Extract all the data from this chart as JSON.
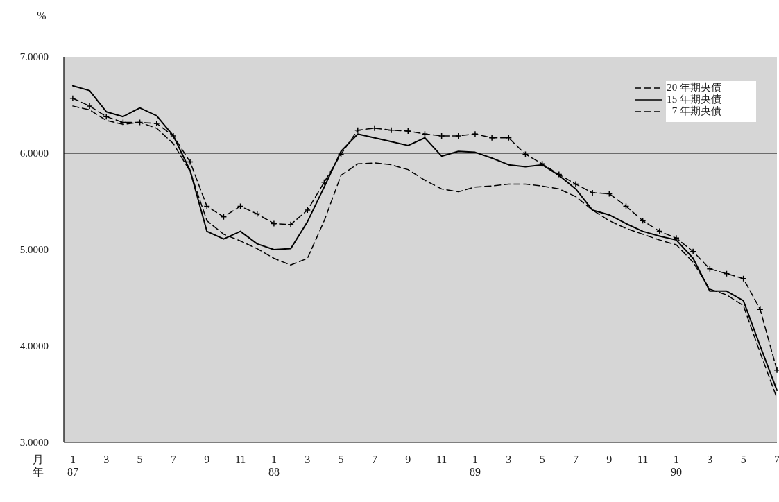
{
  "chart_data": {
    "type": "line",
    "ylabel": "%",
    "xlabel": "月年",
    "x": [
      "1987-01",
      "1987-02",
      "1987-03",
      "1987-04",
      "1987-05",
      "1987-06",
      "1987-07",
      "1987-08",
      "1987-09",
      "1987-10",
      "1987-11",
      "1987-12",
      "1988-01",
      "1988-02",
      "1988-03",
      "1988-04",
      "1988-05",
      "1988-06",
      "1988-07",
      "1988-08",
      "1988-09",
      "1988-10",
      "1988-11",
      "1988-12",
      "1989-01",
      "1989-02",
      "1989-03",
      "1989-04",
      "1989-05",
      "1989-06",
      "1989-07",
      "1989-08",
      "1989-09",
      "1989-10",
      "1989-11",
      "1989-12",
      "1990-01",
      "1990-02",
      "1990-03",
      "1990-04",
      "1990-05",
      "1990-06",
      "1990-07"
    ],
    "series": [
      {
        "name": "20 年期央債",
        "color": "#000000",
        "line_style": "dashed",
        "marker": "cross",
        "values": [
          6.57,
          6.49,
          6.38,
          6.32,
          6.32,
          6.31,
          6.18,
          5.91,
          5.45,
          5.34,
          5.45,
          5.37,
          5.27,
          5.26,
          5.41,
          5.7,
          5.99,
          6.24,
          6.26,
          6.24,
          6.23,
          6.2,
          6.18,
          6.18,
          6.2,
          6.16,
          6.16,
          5.99,
          5.89,
          5.78,
          5.68,
          5.59,
          5.58,
          5.45,
          5.3,
          5.19,
          5.12,
          4.98,
          4.8,
          4.75,
          4.7,
          4.38,
          3.75
        ]
      },
      {
        "name": "15 年期央債",
        "color": "#000000",
        "line_style": "solid",
        "marker": "none",
        "values": [
          6.7,
          6.65,
          6.43,
          6.38,
          6.47,
          6.39,
          6.18,
          5.82,
          5.19,
          5.11,
          5.19,
          5.06,
          5.0,
          5.01,
          5.29,
          5.65,
          6.02,
          6.2,
          6.16,
          6.12,
          6.08,
          6.16,
          5.97,
          6.02,
          6.01,
          5.95,
          5.88,
          5.86,
          5.88,
          5.77,
          5.63,
          5.41,
          5.36,
          5.27,
          5.19,
          5.14,
          5.1,
          4.91,
          4.57,
          4.57,
          4.47,
          4.0,
          3.54
        ]
      },
      {
        "name": "7 年期央債",
        "color": "#000000",
        "line_style": "dashed",
        "marker": "none",
        "values": [
          6.49,
          6.45,
          6.34,
          6.3,
          6.32,
          6.26,
          6.1,
          5.81,
          5.3,
          5.16,
          5.09,
          5.01,
          4.91,
          4.84,
          4.91,
          5.3,
          5.77,
          5.89,
          5.9,
          5.88,
          5.83,
          5.72,
          5.63,
          5.6,
          5.65,
          5.66,
          5.68,
          5.68,
          5.66,
          5.63,
          5.55,
          5.41,
          5.3,
          5.22,
          5.16,
          5.1,
          5.05,
          4.87,
          4.59,
          4.53,
          4.42,
          3.93,
          3.46
        ]
      }
    ],
    "xlim": [
      "1986-12-15",
      "1990-07"
    ],
    "xticks": [
      {
        "value": "1987-01",
        "label": "1\n87"
      },
      {
        "value": "1987-03",
        "label": "3"
      },
      {
        "value": "1987-05",
        "label": "5"
      },
      {
        "value": "1987-07",
        "label": "7"
      },
      {
        "value": "1987-09",
        "label": "9"
      },
      {
        "value": "1987-11",
        "label": "11"
      },
      {
        "value": "1988-01",
        "label": "1\n88"
      },
      {
        "value": "1988-03",
        "label": "3"
      },
      {
        "value": "1988-05",
        "label": "5"
      },
      {
        "value": "1988-07",
        "label": "7"
      },
      {
        "value": "1988-09",
        "label": "9"
      },
      {
        "value": "1988-11",
        "label": "11"
      },
      {
        "value": "1989-01",
        "label": "1\n89"
      },
      {
        "value": "1989-03",
        "label": "3"
      },
      {
        "value": "1989-05",
        "label": "5"
      },
      {
        "value": "1989-07",
        "label": "7"
      },
      {
        "value": "1989-09",
        "label": "9"
      },
      {
        "value": "1989-11",
        "label": "11"
      },
      {
        "value": "1990-01",
        "label": "1\n90"
      },
      {
        "value": "1990-03",
        "label": "3"
      },
      {
        "value": "1990-05",
        "label": "5"
      },
      {
        "value": "1990-07",
        "label": "7"
      }
    ],
    "ylim": [
      3,
      7
    ],
    "yticks": [
      {
        "value": 3,
        "label": "3.0000"
      },
      {
        "value": 4,
        "label": "4.0000"
      },
      {
        "value": 5,
        "label": "5.0000"
      },
      {
        "value": 6,
        "label": "6.0000"
      },
      {
        "value": 7,
        "label": "7.0000"
      }
    ],
    "ref_lines": [
      {
        "axis": "y",
        "value": 6,
        "color": "#000000"
      }
    ],
    "grid": false,
    "legend": "top right"
  }
}
